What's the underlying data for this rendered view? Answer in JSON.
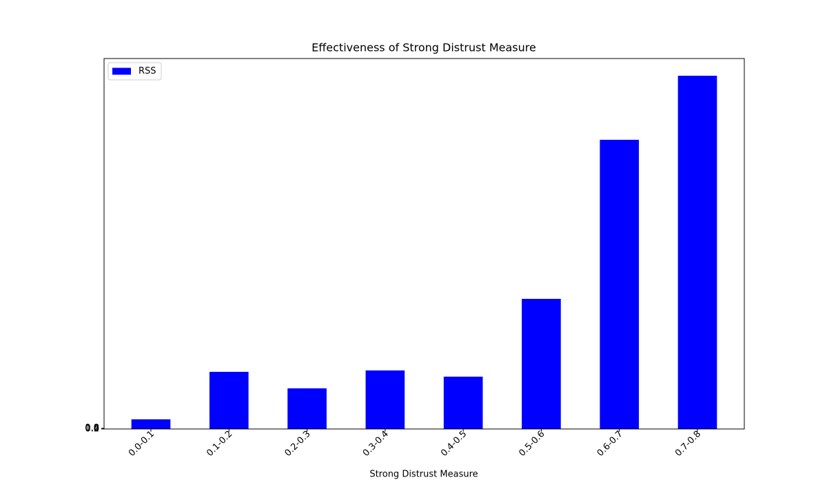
{
  "chart_data": {
    "type": "bar",
    "title": "Effectiveness of Strong Distrust Measure",
    "x_label": "Strong Distrust Measure",
    "categories": [
      "0.0-0.1",
      "0.1-0.2",
      "0.2-0.3",
      "0.3-0.4",
      "0.4-0.5",
      "0.5-0.6",
      "0.6-0.7",
      "0.7-0.8"
    ],
    "series": [
      {
        "name": "RSS",
        "color": "#0000ff",
        "values": [
          14,
          83,
          59,
          85,
          76,
          189,
          420,
          513
        ]
      }
    ],
    "ylim": [
      0,
      538
    ],
    "yticks": [
      {
        "value": 0,
        "label": "0.0"
      },
      0.2,
      0.4,
      0.6,
      0.8,
      {
        "value": 1,
        "label": "1.0"
      }
    ],
    "legend": "upper left"
  }
}
